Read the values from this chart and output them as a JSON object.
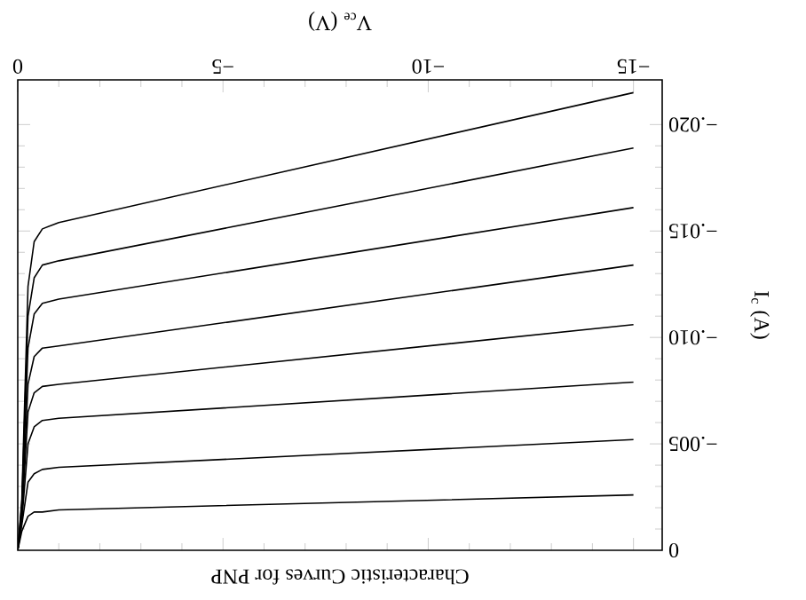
{
  "chart_data": {
    "type": "line",
    "title": "Characteristic Curves for PNP",
    "xlabel": "V$_{ce}$ (V)",
    "ylabel": "I$_{c}$ (A)",
    "x": [
      0,
      -0.1,
      -0.25,
      -0.4,
      -0.6,
      -1,
      -15
    ],
    "series": [
      {
        "color": "#000000",
        "values": [
          0,
          -0.0009,
          -0.0016,
          -0.0018,
          -0.0018,
          -0.0019,
          -0.0026
        ]
      },
      {
        "color": "#000000",
        "values": [
          0,
          -0.0012,
          -0.0032,
          -0.0036,
          -0.0038,
          -0.0039,
          -0.0052
        ]
      },
      {
        "color": "#000000",
        "values": [
          0,
          -0.0014,
          -0.005,
          -0.0058,
          -0.0061,
          -0.0062,
          -0.0079
        ]
      },
      {
        "color": "#000000",
        "values": [
          0,
          -0.0016,
          -0.0065,
          -0.0074,
          -0.0077,
          -0.0078,
          -0.0106
        ]
      },
      {
        "color": "#000000",
        "values": [
          0,
          -0.0018,
          -0.0078,
          -0.0091,
          -0.0095,
          -0.0096,
          -0.0134
        ]
      },
      {
        "color": "#000000",
        "values": [
          0,
          -0.002,
          -0.0095,
          -0.0111,
          -0.0116,
          -0.0118,
          -0.0161
        ]
      },
      {
        "color": "#000000",
        "values": [
          0,
          -0.0022,
          -0.011,
          -0.0128,
          -0.0134,
          -0.0136,
          -0.0189
        ]
      },
      {
        "color": "#000000",
        "values": [
          0,
          -0.0024,
          -0.0124,
          -0.0145,
          -0.0151,
          -0.0154,
          -0.0215
        ]
      }
    ],
    "xlim": [
      0,
      -15.7
    ],
    "ylim": [
      0,
      -0.0221
    ],
    "xticks": [
      {
        "value": -15,
        "label": "−15"
      },
      {
        "value": -10,
        "label": "−10"
      },
      {
        "value": -5,
        "label": "−5"
      },
      0
    ],
    "yticks": [
      {
        "value": -0.02,
        "label": "−.020"
      },
      {
        "value": -0.015,
        "label": "−.015"
      },
      {
        "value": -0.01,
        "label": "−.010"
      },
      {
        "value": -0.005,
        "label": "−.005"
      },
      0
    ],
    "grid": false,
    "marker": "none",
    "line_style": "solid"
  }
}
